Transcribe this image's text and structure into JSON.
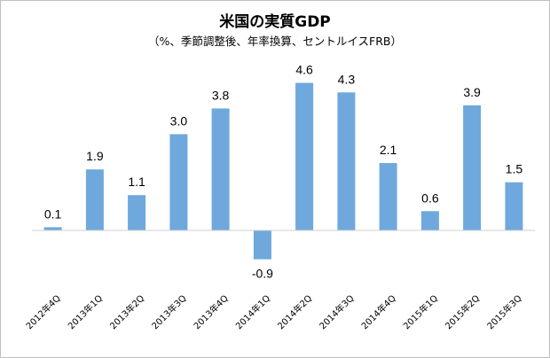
{
  "chart_data": {
    "type": "bar",
    "title": "米国の実質GDP",
    "subtitle": "（%、季節調整後、年率換算、セントルイスFRB）",
    "categories": [
      "2012年4Q",
      "2013年1Q",
      "2013年2Q",
      "2013年3Q",
      "2013年4Q",
      "2014年1Q",
      "2014年2Q",
      "2014年3Q",
      "2014年4Q",
      "2015年1Q",
      "2015年2Q",
      "2015年3Q"
    ],
    "values": [
      0.1,
      1.9,
      1.1,
      3.0,
      3.8,
      -0.9,
      4.6,
      4.3,
      2.1,
      0.6,
      3.9,
      1.5
    ],
    "data_labels": [
      "0.1",
      "1.9",
      "1.1",
      "3.0",
      "3.8",
      "-0.9",
      "4.6",
      "4.3",
      "2.1",
      "0.6",
      "3.9",
      "1.5"
    ],
    "bar_color": "#6fa8dc",
    "xlabel": "",
    "ylabel": "",
    "ylim": [
      -1.2,
      5.2
    ],
    "grid": false,
    "legend": "none"
  }
}
